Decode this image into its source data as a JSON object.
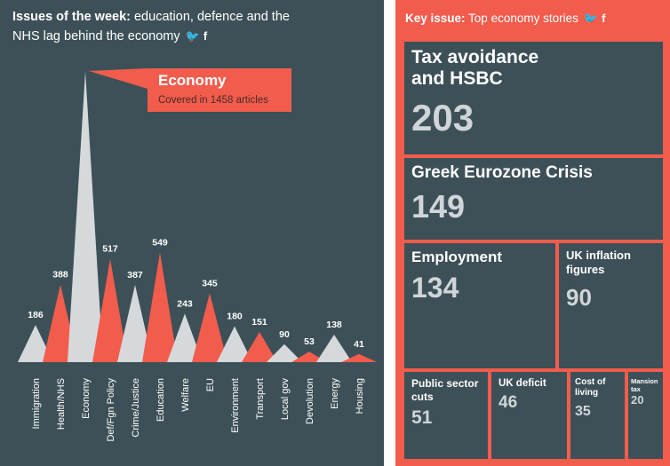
{
  "colors": {
    "panel": "#3d5058",
    "accent": "#f25c4d",
    "grey_peak": "#d5d9dc",
    "white": "#ffffff",
    "tile_value": "#cfd5d8"
  },
  "left_header": {
    "bold": "Issues of the week:",
    "rest_line1": " education, defence and the",
    "line2": "NHS lag behind the economy",
    "icons": [
      "twitter-icon",
      "facebook-icon"
    ]
  },
  "callout": {
    "title": "Economy",
    "subtitle": "Covered in 1458 articles"
  },
  "right_header": {
    "bold": "Key issue:",
    "rest": " Top economy stories",
    "icons": [
      "twitter-icon",
      "facebook-icon"
    ]
  },
  "chart_data": [
    {
      "type": "area",
      "style": "peaks",
      "categories": [
        "Immigration",
        "Health/NHS",
        "Economy",
        "Def/Fgn Policy",
        "Crime/Justice",
        "Education",
        "Welfare",
        "EU",
        "Environment",
        "Transport",
        "Local gov",
        "Devolution",
        "Energy",
        "Housing"
      ],
      "values": [
        186,
        388,
        1458,
        517,
        387,
        549,
        243,
        345,
        180,
        151,
        90,
        53,
        138,
        41
      ],
      "labels": [
        "186",
        "388",
        "",
        "517",
        "387",
        "549",
        "243",
        "345",
        "180",
        "151",
        "90",
        "53",
        "138",
        "41"
      ],
      "colors": [
        "#d5d9dc",
        "#f25c4d",
        "#d5d9dc",
        "#f25c4d",
        "#d5d9dc",
        "#f25c4d",
        "#d5d9dc",
        "#f25c4d",
        "#d5d9dc",
        "#f25c4d",
        "#d5d9dc",
        "#f25c4d",
        "#d5d9dc",
        "#f25c4d"
      ]
    },
    {
      "type": "treemap",
      "items": [
        {
          "name": "Tax avoidance and HSBC",
          "lines": [
            "Tax avoidance",
            "and HSBC"
          ],
          "value": 203
        },
        {
          "name": "Greek Eurozone Crisis",
          "lines": [
            "Greek Eurozone Crisis"
          ],
          "value": 149
        },
        {
          "name": "Employment",
          "lines": [
            "Employment"
          ],
          "value": 134
        },
        {
          "name": "UK inflation figures",
          "lines": [
            "UK inflation",
            "figures"
          ],
          "value": 90
        },
        {
          "name": "Public sector cuts",
          "lines": [
            "Public sector",
            "cuts"
          ],
          "value": 51
        },
        {
          "name": "UK deficit",
          "lines": [
            "UK deficit"
          ],
          "value": 46
        },
        {
          "name": "Cost of living",
          "lines": [
            "Cost of",
            "living"
          ],
          "value": 35
        },
        {
          "name": "Mansion tax",
          "lines": [
            "Mansion",
            "tax"
          ],
          "value": 20
        }
      ]
    }
  ]
}
